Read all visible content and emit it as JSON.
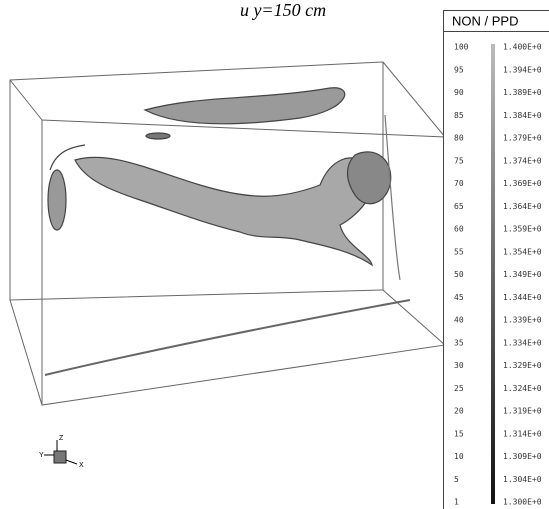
{
  "title": "u y=150 cm",
  "legend": {
    "header": "NON / PPD",
    "rows": [
      [
        "100",
        "1.400E+0"
      ],
      [
        "95",
        "1.394E+0"
      ],
      [
        "90",
        "1.389E+0"
      ],
      [
        "85",
        "1.384E+0"
      ],
      [
        "80",
        "1.379E+0"
      ],
      [
        "75",
        "1.374E+0"
      ],
      [
        "70",
        "1.369E+0"
      ],
      [
        "65",
        "1.364E+0"
      ],
      [
        "60",
        "1.359E+0"
      ],
      [
        "55",
        "1.354E+0"
      ],
      [
        "50",
        "1.349E+0"
      ],
      [
        "45",
        "1.344E+0"
      ],
      [
        "40",
        "1.339E+0"
      ],
      [
        "35",
        "1.334E+0"
      ],
      [
        "30",
        "1.329E+0"
      ],
      [
        "25",
        "1.324E+0"
      ],
      [
        "20",
        "1.319E+0"
      ],
      [
        "15",
        "1.314E+0"
      ],
      [
        "10",
        "1.309E+0"
      ],
      [
        "5",
        "1.304E+0"
      ],
      [
        "1",
        "1.300E+0"
      ]
    ]
  },
  "axes_triad": {
    "z": "Z",
    "y": "Y",
    "x": "X"
  }
}
